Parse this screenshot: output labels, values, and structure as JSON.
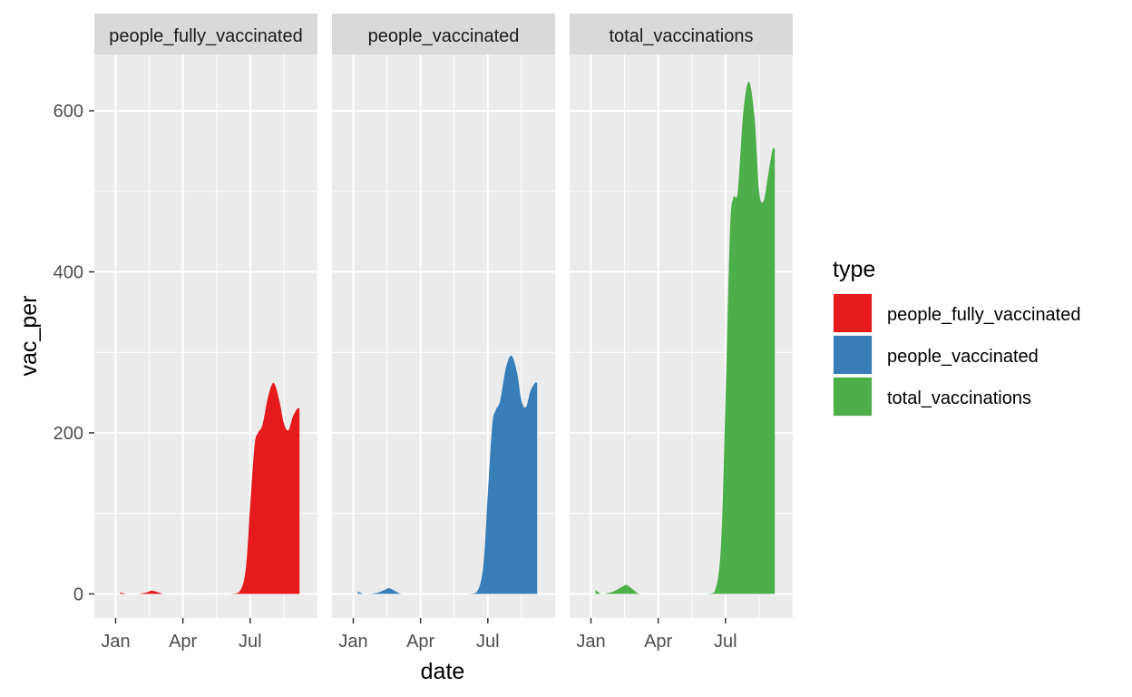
{
  "chart_data": {
    "type": "area",
    "xlabel": "date",
    "ylabel": "vac_per",
    "legend_title": "type",
    "legend_position": "right",
    "x_ticks": [
      "Jan",
      "Apr",
      "Jul"
    ],
    "y_ticks": [
      "0",
      "200",
      "400",
      "600"
    ],
    "ylim": [
      -30,
      670
    ],
    "grid": true,
    "x_unit_note": "x values are months of 2021 (1 = Jan 1, 4 = Apr 1, 7 = Jul 1)",
    "xlim": [
      0.05,
      10.0
    ],
    "series": [
      {
        "name": "people_fully_vaccinated",
        "color": "#E41A1C",
        "points": [
          [
            1.2,
            2
          ],
          [
            1.5,
            0
          ],
          [
            2.0,
            0
          ],
          [
            2.4,
            2
          ],
          [
            2.6,
            4
          ],
          [
            2.9,
            2
          ],
          [
            3.2,
            0
          ],
          [
            4.0,
            0
          ],
          [
            5.0,
            0
          ],
          [
            6.0,
            0
          ],
          [
            6.5,
            2
          ],
          [
            6.8,
            30
          ],
          [
            7.0,
            110
          ],
          [
            7.2,
            185
          ],
          [
            7.35,
            200
          ],
          [
            7.55,
            210
          ],
          [
            7.8,
            245
          ],
          [
            8.05,
            262
          ],
          [
            8.3,
            240
          ],
          [
            8.5,
            212
          ],
          [
            8.7,
            203
          ],
          [
            8.9,
            220
          ],
          [
            9.1,
            230
          ],
          [
            9.2,
            230
          ]
        ]
      },
      {
        "name": "people_vaccinated",
        "color": "#377EB8",
        "points": [
          [
            1.2,
            3
          ],
          [
            1.5,
            0
          ],
          [
            2.0,
            1
          ],
          [
            2.4,
            5
          ],
          [
            2.6,
            7
          ],
          [
            2.9,
            3
          ],
          [
            3.2,
            0
          ],
          [
            4.0,
            0
          ],
          [
            5.0,
            0
          ],
          [
            6.0,
            0
          ],
          [
            6.5,
            2
          ],
          [
            6.8,
            35
          ],
          [
            7.0,
            125
          ],
          [
            7.2,
            210
          ],
          [
            7.35,
            228
          ],
          [
            7.55,
            240
          ],
          [
            7.8,
            280
          ],
          [
            8.05,
            296
          ],
          [
            8.3,
            275
          ],
          [
            8.5,
            240
          ],
          [
            8.7,
            232
          ],
          [
            8.9,
            252
          ],
          [
            9.1,
            262
          ],
          [
            9.2,
            262
          ]
        ]
      },
      {
        "name": "total_vaccinations",
        "color": "#4DAF4A",
        "points": [
          [
            1.2,
            5
          ],
          [
            1.5,
            0
          ],
          [
            2.0,
            3
          ],
          [
            2.4,
            9
          ],
          [
            2.6,
            11
          ],
          [
            2.9,
            5
          ],
          [
            3.2,
            0
          ],
          [
            4.0,
            0
          ],
          [
            5.0,
            0
          ],
          [
            6.0,
            0
          ],
          [
            6.5,
            2
          ],
          [
            6.8,
            60
          ],
          [
            7.0,
            240
          ],
          [
            7.2,
            450
          ],
          [
            7.35,
            492
          ],
          [
            7.55,
            500
          ],
          [
            7.8,
            600
          ],
          [
            8.05,
            636
          ],
          [
            8.3,
            590
          ],
          [
            8.5,
            500
          ],
          [
            8.7,
            488
          ],
          [
            8.9,
            520
          ],
          [
            9.1,
            552
          ],
          [
            9.2,
            552
          ]
        ]
      }
    ]
  }
}
